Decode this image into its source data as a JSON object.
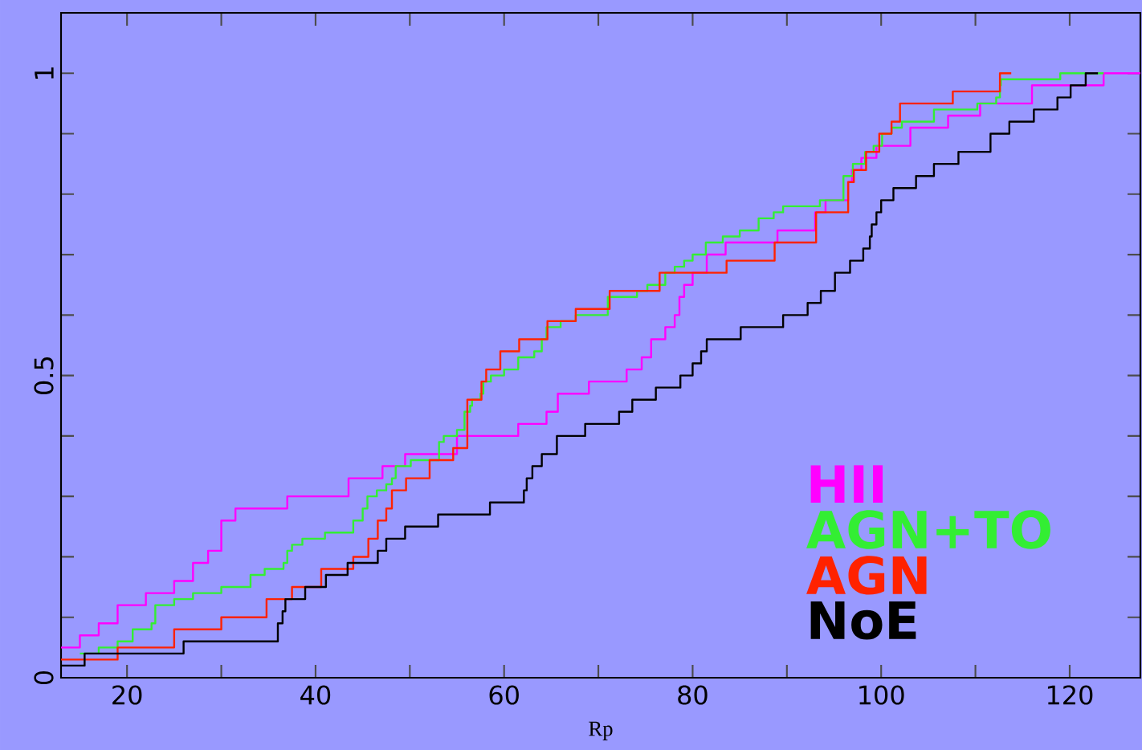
{
  "chart_data": {
    "type": "step",
    "xlabel": "Rp",
    "xlim": [
      13,
      127.5
    ],
    "ylim": [
      0,
      1.1
    ],
    "xticks": [
      20,
      {
        "value": 30,
        "label": null
      },
      40,
      {
        "value": 50,
        "label": null
      },
      60,
      {
        "value": 70,
        "label": null
      },
      80,
      {
        "value": 90,
        "label": null
      },
      100,
      {
        "value": 110,
        "label": null
      },
      120
    ],
    "yticks": [
      0,
      {
        "value": 0.1,
        "label": null
      },
      {
        "value": 0.2,
        "label": null
      },
      {
        "value": 0.3,
        "label": null
      },
      {
        "value": 0.4,
        "label": null
      },
      0.5,
      {
        "value": 0.6,
        "label": null
      },
      {
        "value": 0.7,
        "label": null
      },
      {
        "value": 0.8,
        "label": null
      },
      {
        "value": 0.9,
        "label": null
      },
      1
    ],
    "legend": "bottom right",
    "grid": false,
    "marker": "none",
    "line_style": "solid",
    "series": [
      {
        "name": "HII",
        "color": "#ff00ff",
        "x": [
          13,
          15.0,
          17.0,
          19.0,
          22.0,
          25.0,
          27.0,
          28.6,
          30.0,
          31.5,
          37.0,
          43.5,
          47.1,
          49.5,
          55.0,
          61.5,
          64.5,
          65.7,
          69.0,
          73.0,
          74.6,
          75.6,
          77.1,
          78.1,
          78.6,
          79.1,
          80.0,
          81.5,
          83.5,
          89.0,
          93.0,
          94.1,
          96.5,
          96.9,
          97.9,
          99.5,
          103.1,
          107.1,
          110.5,
          116.0,
          123.6,
          127.5
        ],
        "values": [
          0.05,
          0.07,
          0.09,
          0.12,
          0.14,
          0.16,
          0.19,
          0.21,
          0.26,
          0.28,
          0.3,
          0.33,
          0.35,
          0.37,
          0.4,
          0.42,
          0.44,
          0.47,
          0.49,
          0.51,
          0.53,
          0.56,
          0.58,
          0.6,
          0.63,
          0.65,
          0.67,
          0.7,
          0.72,
          0.74,
          0.77,
          0.79,
          0.82,
          0.84,
          0.86,
          0.88,
          0.91,
          0.93,
          0.95,
          0.98,
          1.0,
          1.0
        ]
      },
      {
        "name": "AGN+TO",
        "color": "#33ee33",
        "x": [
          15.0,
          17.0,
          19.0,
          20.6,
          22.6,
          23.0,
          25.0,
          27.0,
          30.0,
          33.1,
          34.6,
          36.6,
          37.0,
          37.5,
          38.6,
          41.0,
          44.0,
          45.0,
          45.5,
          46.5,
          47.5,
          48.1,
          48.5,
          50.1,
          53.1,
          53.6,
          55.0,
          55.8,
          56.4,
          56.6,
          57.5,
          57.8,
          58.6,
          60.0,
          61.5,
          63.2,
          64.0,
          64.5,
          66.0,
          67.6,
          71.0,
          74.1,
          75.2,
          77.1,
          78.1,
          79.1,
          80.0,
          81.4,
          83.2,
          85.0,
          87.0,
          88.6,
          89.6,
          93.5,
          96.0,
          96.2,
          97.0,
          98.3,
          99.2,
          100.1,
          101.1,
          102.2,
          105.6,
          110.2,
          112.2,
          112.6,
          112.7,
          119.0,
          123.6
        ],
        "values": [
          0.04,
          0.05,
          0.06,
          0.08,
          0.09,
          0.12,
          0.13,
          0.14,
          0.15,
          0.17,
          0.18,
          0.19,
          0.21,
          0.22,
          0.23,
          0.24,
          0.26,
          0.28,
          0.3,
          0.31,
          0.32,
          0.33,
          0.35,
          0.36,
          0.39,
          0.4,
          0.41,
          0.44,
          0.45,
          0.46,
          0.47,
          0.49,
          0.5,
          0.51,
          0.53,
          0.54,
          0.56,
          0.58,
          0.59,
          0.6,
          0.63,
          0.64,
          0.65,
          0.67,
          0.68,
          0.69,
          0.7,
          0.72,
          0.73,
          0.74,
          0.76,
          0.77,
          0.78,
          0.79,
          0.83,
          0.83,
          0.85,
          0.87,
          0.88,
          0.9,
          0.91,
          0.92,
          0.94,
          0.95,
          0.96,
          0.98,
          0.99,
          1.0,
          1.0
        ]
      },
      {
        "name": "AGN",
        "color": "#ff2200",
        "x": [
          13,
          19.0,
          25.0,
          30.0,
          34.8,
          37.5,
          40.6,
          44.0,
          45.6,
          46.6,
          47.5,
          48.1,
          49.6,
          52.1,
          54.6,
          56.1,
          57.6,
          58.1,
          59.6,
          61.6,
          64.6,
          67.6,
          71.2,
          76.5,
          83.6,
          88.7,
          93.1,
          96.5,
          97.1,
          98.4,
          99.8,
          101.1,
          102.0,
          107.6,
          112.6,
          113.8
        ],
        "values": [
          0.03,
          0.05,
          0.08,
          0.1,
          0.13,
          0.15,
          0.18,
          0.2,
          0.23,
          0.26,
          0.28,
          0.31,
          0.33,
          0.36,
          0.38,
          0.46,
          0.49,
          0.51,
          0.54,
          0.56,
          0.59,
          0.61,
          0.64,
          0.67,
          0.69,
          0.72,
          0.77,
          0.82,
          0.84,
          0.87,
          0.9,
          0.92,
          0.95,
          0.97,
          1.0,
          1.0
        ]
      },
      {
        "name": "NoE",
        "color": "#000000",
        "x": [
          13,
          15.5,
          26.0,
          36.0,
          36.5,
          36.8,
          38.9,
          41.1,
          43.4,
          46.6,
          47.5,
          49.5,
          53.0,
          58.5,
          62.1,
          62.4,
          63.0,
          64.0,
          65.6,
          68.6,
          72.2,
          73.6,
          76.1,
          78.7,
          80.0,
          80.9,
          81.5,
          85.1,
          89.6,
          92.2,
          93.6,
          95.1,
          96.7,
          98.1,
          98.8,
          99.0,
          99.5,
          100.0,
          101.3,
          103.7,
          105.6,
          108.2,
          111.6,
          113.6,
          116.2,
          118.7,
          120.1,
          121.7,
          123.0
        ],
        "values": [
          0.02,
          0.04,
          0.06,
          0.09,
          0.11,
          0.13,
          0.15,
          0.17,
          0.19,
          0.21,
          0.23,
          0.25,
          0.27,
          0.29,
          0.31,
          0.33,
          0.35,
          0.37,
          0.4,
          0.42,
          0.44,
          0.46,
          0.48,
          0.5,
          0.52,
          0.54,
          0.56,
          0.58,
          0.6,
          0.62,
          0.64,
          0.67,
          0.69,
          0.71,
          0.73,
          0.75,
          0.77,
          0.79,
          0.81,
          0.83,
          0.85,
          0.87,
          0.9,
          0.92,
          0.94,
          0.96,
          0.98,
          1.0,
          1.0
        ]
      }
    ]
  }
}
